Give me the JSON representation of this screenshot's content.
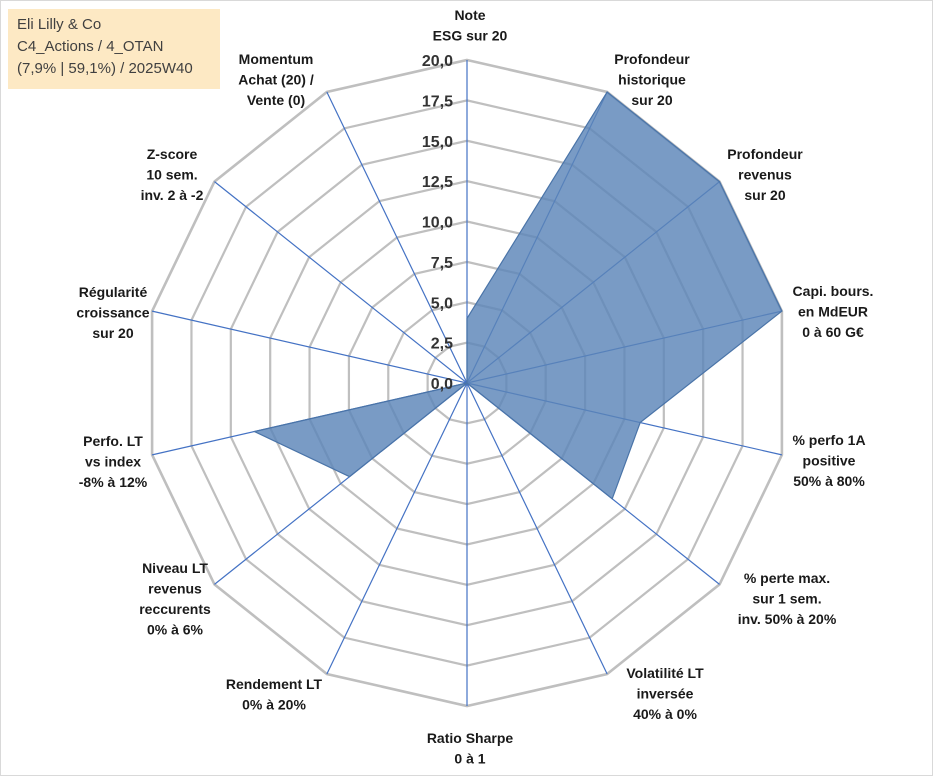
{
  "info": {
    "company": "Eli Lilly & Co",
    "category": "C4_Actions / 4_OTAN",
    "stats": "(7,9% | 59,1%) / 2025W40"
  },
  "chart_data": {
    "type": "radar",
    "title": "",
    "r_min": 0,
    "r_max": 20,
    "tick_values": [
      0,
      2.5,
      5,
      7.5,
      10,
      12.5,
      15,
      17.5,
      20
    ],
    "tick_labels": [
      "0,0",
      "2,5",
      "5,0",
      "7,5",
      "10,0",
      "12,5",
      "15,0",
      "17,5",
      "20,0"
    ],
    "axes": [
      {
        "label": [
          "Note",
          "ESG sur 20"
        ]
      },
      {
        "label": [
          "Profondeur",
          "historique",
          "sur 20"
        ]
      },
      {
        "label": [
          "Profondeur",
          "revenus",
          "sur 20"
        ]
      },
      {
        "label": [
          "Capi. bours.",
          "en MdEUR",
          "0 à 60 G€"
        ]
      },
      {
        "label": [
          "% perfo 1A",
          "positive",
          "50% à 80%"
        ]
      },
      {
        "label": [
          "% perte max.",
          "sur 1 sem.",
          "inv. 50% à 20%"
        ]
      },
      {
        "label": [
          "Volatilité LT",
          "inversée",
          "40% à 0%"
        ]
      },
      {
        "label": [
          "Ratio Sharpe",
          "0 à 1"
        ]
      },
      {
        "label": [
          "Rendement LT",
          "0% à 20%"
        ]
      },
      {
        "label": [
          "Niveau LT",
          "revenus",
          "reccurents",
          "0% à 6%"
        ]
      },
      {
        "label": [
          "Perfo. LT",
          "vs index",
          "-8% à 12%"
        ]
      },
      {
        "label": [
          "Régularité",
          "croissance",
          "sur 20"
        ]
      },
      {
        "label": [
          "Z-score",
          "10 sem.",
          "inv. 2 à -2"
        ]
      },
      {
        "label": [
          "Momentum",
          "Achat (20) /",
          "Vente (0)"
        ]
      }
    ],
    "series": [
      {
        "name": "Eli Lilly & Co",
        "color": "#5b85b8",
        "values": [
          4,
          20,
          20,
          20,
          11,
          11.5,
          0,
          0,
          0,
          9.3,
          13.5,
          0,
          0,
          0
        ]
      }
    ],
    "colors": {
      "grid": "#bfbfbf",
      "spoke": "#4472c4",
      "fill": "#5b85b8",
      "border": "#4a74a8"
    }
  }
}
